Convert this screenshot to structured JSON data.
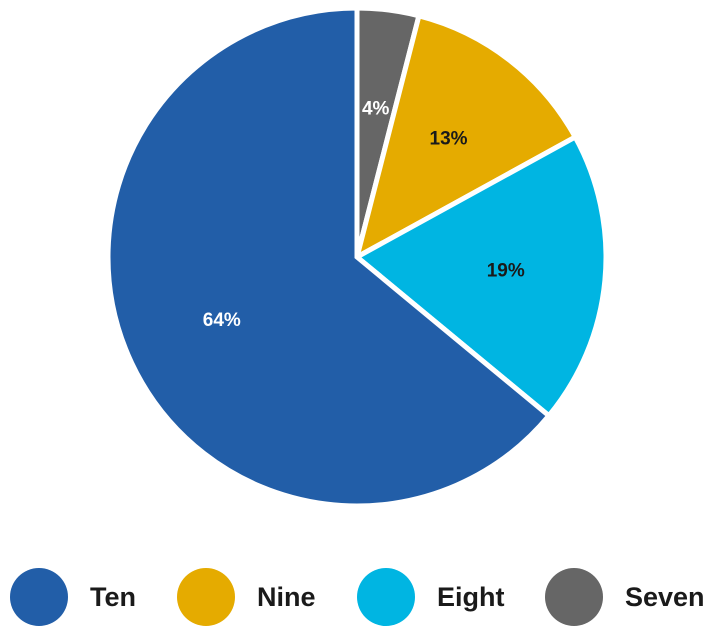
{
  "chart_data": {
    "type": "pie",
    "title": "",
    "start_angle_deg": 0,
    "direction": "clockwise",
    "slices": [
      {
        "label": "Seven",
        "value": 4,
        "display": "4%",
        "color": "#666666",
        "label_color": "#ffffff"
      },
      {
        "label": "Nine",
        "value": 13,
        "display": "13%",
        "color": "#e5ab00",
        "label_color": "#1a1a1a"
      },
      {
        "label": "Eight",
        "value": 19,
        "display": "19%",
        "color": "#00b5e2",
        "label_color": "#1a1a1a"
      },
      {
        "label": "Ten",
        "value": 64,
        "display": "64%",
        "color": "#225ea8",
        "label_color": "#ffffff"
      }
    ],
    "legend": {
      "placement": "bottom",
      "entries": [
        {
          "label": "Ten",
          "color": "#225ea8"
        },
        {
          "label": "Nine",
          "color": "#e5ab00"
        },
        {
          "label": "Eight",
          "color": "#00b5e2"
        },
        {
          "label": "Seven",
          "color": "#666666"
        }
      ]
    }
  }
}
